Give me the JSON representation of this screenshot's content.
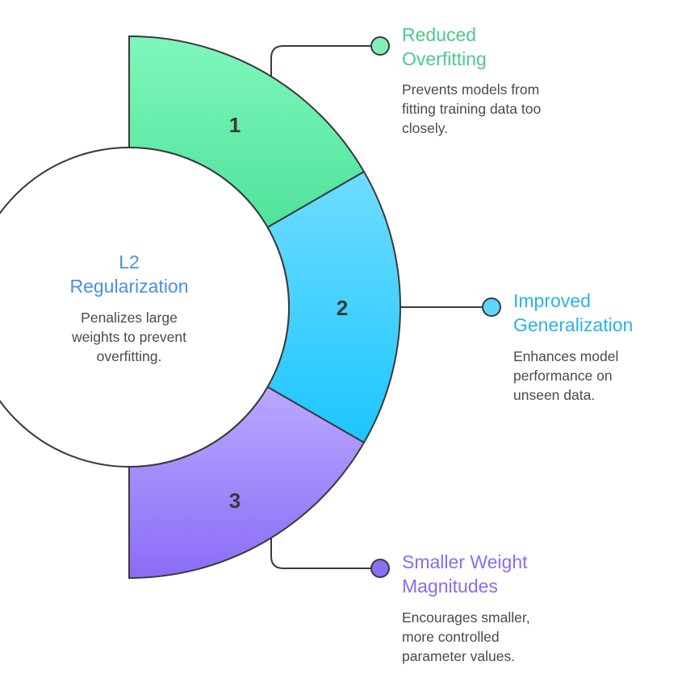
{
  "center": {
    "title_lines": [
      "L2",
      "Regularization"
    ],
    "desc_lines": [
      "Penalizes large",
      "weights to prevent",
      "overfitting."
    ],
    "color": "#4a8fe0"
  },
  "segments": [
    {
      "number": "1",
      "title_lines": [
        "Reduced",
        "Overfitting"
      ],
      "desc_lines": [
        "Prevents models from",
        "fitting training data too",
        "closely."
      ],
      "color": "#4cc98a",
      "fill_top": "#80f7bc",
      "fill_bottom": "#4fe29b"
    },
    {
      "number": "2",
      "title_lines": [
        "Improved",
        "Generalization"
      ],
      "desc_lines": [
        "Enhances model",
        "performance on",
        "unseen data."
      ],
      "color": "#2ab3e8",
      "fill_top": "#6fdcff",
      "fill_bottom": "#1cc6ff"
    },
    {
      "number": "3",
      "title_lines": [
        "Smaller Weight",
        "Magnitudes"
      ],
      "desc_lines": [
        "Encourages smaller,",
        "more controlled",
        "parameter values."
      ],
      "color": "#8a6cf0",
      "fill_top": "#b9a8ff",
      "fill_bottom": "#8b6cf6"
    }
  ]
}
